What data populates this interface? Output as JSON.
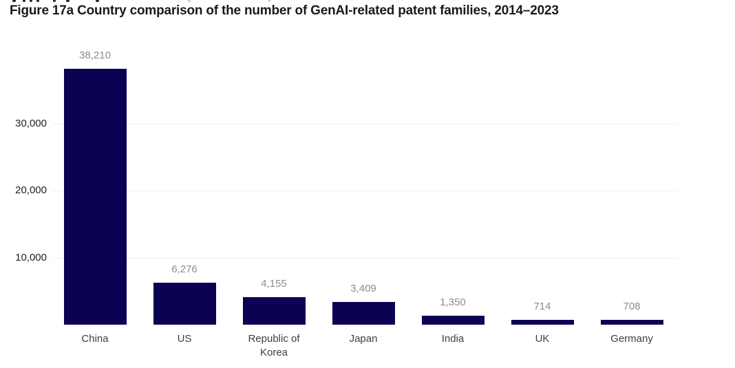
{
  "figure": {
    "title": "Figure 17a Country comparison of the number of GenAI-related patent families, 2014–2023"
  },
  "chart_data": {
    "type": "bar",
    "title": "Figure 17a Country comparison of the number of GenAI-related patent families, 2014–2023",
    "categories": [
      "China",
      "US",
      "Republic of Korea",
      "Japan",
      "India",
      "UK",
      "Germany"
    ],
    "values": [
      38210,
      6276,
      4155,
      3409,
      1350,
      714,
      708
    ],
    "value_labels": [
      "38,210",
      "6,276",
      "4,155",
      "3,409",
      "1,350",
      "714",
      "708"
    ],
    "xlabel": "",
    "ylabel": "",
    "ylim": [
      0,
      40000
    ],
    "yticks": [
      {
        "value": 10000,
        "label": "10,000"
      },
      {
        "value": 20000,
        "label": "20,000"
      },
      {
        "value": 30000,
        "label": "30,000"
      }
    ],
    "grid": true,
    "legend": "none",
    "colors": {
      "bar": "#0b0254",
      "gridline": "#efefef",
      "value_label": "#8c8c8c",
      "category_label": "#3d3d3d",
      "ytick_label": "#1f1f1f",
      "title": "#1a1a1a"
    }
  },
  "top_crop_fragments": {
    "dark_color": "#2a2a2a",
    "light_color": "#c9c9c9",
    "marks": [
      {
        "x": 18,
        "w": 5,
        "light": false
      },
      {
        "x": 33,
        "w": 4,
        "light": false
      },
      {
        "x": 43,
        "w": 4,
        "light": false
      },
      {
        "x": 53,
        "w": 4,
        "light": false
      },
      {
        "x": 77,
        "w": 4,
        "light": false
      },
      {
        "x": 96,
        "w": 5,
        "light": false
      },
      {
        "x": 139,
        "w": 5,
        "light": false
      },
      {
        "x": 273,
        "w": 4,
        "light": true
      },
      {
        "x": 390,
        "w": 3,
        "light": true
      }
    ]
  }
}
